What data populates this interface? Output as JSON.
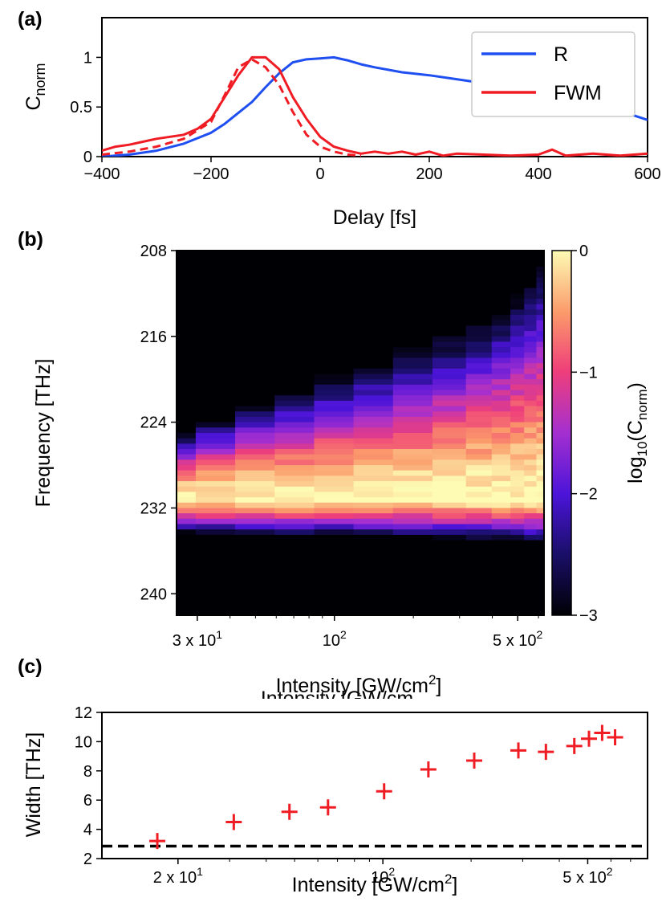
{
  "chart_data": [
    {
      "panel": "(a)",
      "type": "line",
      "xlabel": "Delay [fs]",
      "ylabel": "C",
      "ylabel_sub": "norm",
      "xlim": [
        -400,
        600
      ],
      "ylim": [
        0,
        1.4
      ],
      "xticks": [
        "−400",
        "−200",
        "0",
        "200",
        "400",
        "600"
      ],
      "yticks": [
        "0",
        "0.5",
        "1"
      ],
      "legend_position": "top-right",
      "series": [
        {
          "name": "R",
          "color": "#1f4ff0",
          "style": "solid",
          "x": [
            -400,
            -350,
            -300,
            -250,
            -200,
            -175,
            -150,
            -125,
            -100,
            -75,
            -50,
            -25,
            0,
            25,
            50,
            75,
            100,
            150,
            200,
            250,
            300,
            350,
            400,
            450,
            500,
            550,
            600
          ],
          "y": [
            0.0,
            0.02,
            0.06,
            0.13,
            0.24,
            0.33,
            0.44,
            0.55,
            0.7,
            0.84,
            0.95,
            0.98,
            0.99,
            1.0,
            0.97,
            0.93,
            0.9,
            0.85,
            0.82,
            0.78,
            0.74,
            0.7,
            0.65,
            0.6,
            0.54,
            0.46,
            0.37
          ]
        },
        {
          "name": "FWM",
          "color": "#f01c24",
          "style": "solid",
          "x": [
            -400,
            -375,
            -350,
            -325,
            -300,
            -275,
            -250,
            -225,
            -200,
            -175,
            -150,
            -125,
            -100,
            -75,
            -50,
            -25,
            0,
            25,
            50,
            75,
            100,
            125,
            150,
            175,
            200,
            225,
            250,
            300,
            350,
            400,
            425,
            450,
            500,
            550,
            600
          ],
          "y": [
            0.06,
            0.1,
            0.12,
            0.15,
            0.18,
            0.2,
            0.22,
            0.28,
            0.38,
            0.6,
            0.82,
            1.0,
            1.0,
            0.88,
            0.6,
            0.38,
            0.2,
            0.1,
            0.06,
            0.03,
            0.05,
            0.03,
            0.05,
            0.02,
            0.05,
            0.01,
            0.03,
            0.02,
            0.01,
            0.02,
            0.07,
            0.01,
            0.03,
            0.01,
            0.03
          ]
        },
        {
          "name": "",
          "color": "#f01c24",
          "style": "dashed",
          "x": [
            -400,
            -350,
            -300,
            -250,
            -200,
            -175,
            -150,
            -125,
            -100,
            -75,
            -50,
            -25,
            0,
            25,
            50,
            75
          ],
          "y": [
            0.02,
            0.05,
            0.1,
            0.18,
            0.35,
            0.62,
            0.9,
            0.98,
            0.9,
            0.72,
            0.45,
            0.22,
            0.1,
            0.05,
            0.02,
            0.01
          ]
        }
      ]
    },
    {
      "panel": "(b)",
      "type": "heatmap",
      "xlabel": "Intensity [GW/cm",
      "xlabel_sup": "2",
      "xlabel_tail": "]",
      "ylabel": "Frequency [THz]",
      "x_scale": "log",
      "xlim": [
        25,
        630
      ],
      "ylim": [
        208,
        242
      ],
      "xticks": [
        "3 x 10",
        "10",
        "5 x 10"
      ],
      "xtick_exp": [
        "1",
        "2",
        "2"
      ],
      "yticks": [
        "208",
        "216",
        "224",
        "232",
        "240"
      ],
      "columns_intensity": [
        25,
        35,
        50,
        70,
        100,
        140,
        200,
        280,
        360,
        440,
        500,
        560,
        620
      ],
      "colormap": "plasma-like (black-blue-purple-pink-yellow)",
      "colorbar": {
        "label": "log",
        "label_sub": "10",
        "label_tail": "(C",
        "label_tail_sub": "norm",
        "label_end": ")",
        "range": [
          -3,
          0
        ],
        "ticks": [
          "0",
          "−1",
          "−2",
          "−3"
        ]
      }
    },
    {
      "panel": "(c)",
      "type": "scatter",
      "marker": "plus",
      "marker_color": "#f01c24",
      "xlabel": "Intensity [GW/cm",
      "xlabel_sup": "2",
      "xlabel_tail": "]",
      "ylabel": "Width [THz]",
      "x_scale": "log",
      "xlim": [
        11,
        800
      ],
      "ylim": [
        2,
        12
      ],
      "xticks": [
        "2 x 10",
        "10",
        "5 x 10"
      ],
      "xtick_exp": [
        "1",
        "2",
        "2"
      ],
      "yticks": [
        "2",
        "4",
        "6",
        "8",
        "10",
        "12"
      ],
      "x": [
        17,
        31,
        48,
        65,
        101,
        143,
        205,
        290,
        360,
        450,
        505,
        560,
        620
      ],
      "y": [
        3.2,
        4.5,
        5.2,
        5.5,
        6.6,
        8.1,
        8.7,
        9.4,
        9.3,
        9.7,
        10.2,
        10.6,
        10.3
      ],
      "reference_line": {
        "y": 2.85,
        "style": "dashed",
        "color": "#000000"
      }
    }
  ],
  "overlay_text": "Intensity [GW/cm"
}
